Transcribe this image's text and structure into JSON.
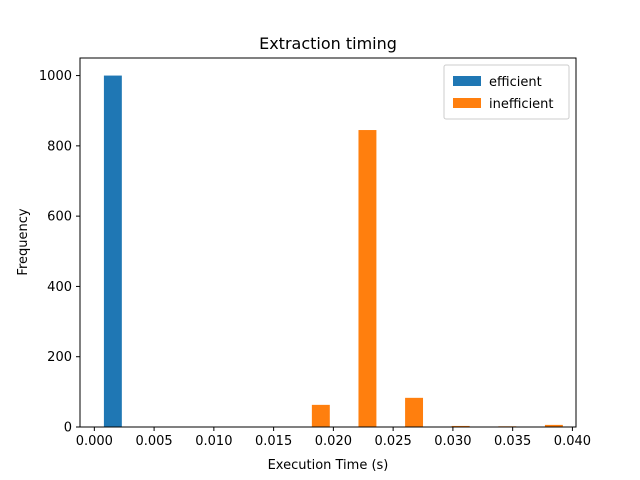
{
  "chart_data": {
    "type": "bar",
    "title": "Extraction timing",
    "xlabel": "Execution Time (s)",
    "ylabel": "Frequency",
    "xlim": [
      -0.0012,
      0.0403
    ],
    "ylim": [
      0,
      1050
    ],
    "xticks": [
      "0.000",
      "0.005",
      "0.010",
      "0.015",
      "0.020",
      "0.025",
      "0.030",
      "0.035",
      "0.040"
    ],
    "xtick_values": [
      0,
      0.005,
      0.01,
      0.015,
      0.02,
      0.025,
      0.03,
      0.035,
      0.04
    ],
    "yticks": [
      "0",
      "200",
      "400",
      "600",
      "800",
      "1000"
    ],
    "ytick_values": [
      0,
      200,
      400,
      600,
      800,
      1000
    ],
    "bar_width": 0.0015,
    "grid": false,
    "legend_position": "top-right",
    "series": [
      {
        "name": "efficient",
        "color": "#1f77b4",
        "x": [
          0.00155
        ],
        "values": [
          1000
        ]
      },
      {
        "name": "inefficient",
        "color": "#ff7f0e",
        "x": [
          0.01895,
          0.02285,
          0.02675,
          0.03065,
          0.03455,
          0.03845
        ],
        "values": [
          63,
          845,
          83,
          3,
          2,
          6
        ]
      }
    ]
  }
}
